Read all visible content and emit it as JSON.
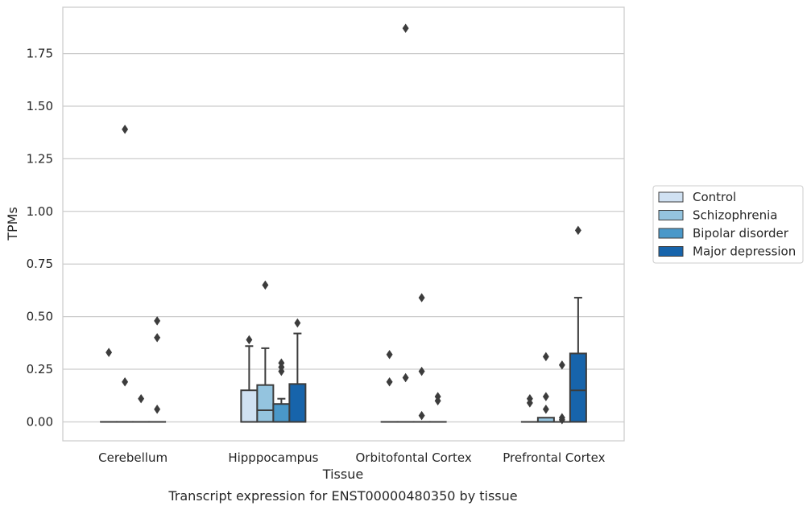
{
  "chart_data": {
    "type": "box",
    "caption": "Transcript expression for ENST00000480350 by tissue",
    "xlabel": "Tissue",
    "ylabel": "TPMs",
    "ylim": [
      -0.09,
      1.97
    ],
    "yticks": [
      0.0,
      0.25,
      0.5,
      0.75,
      1.0,
      1.25,
      1.5,
      1.75
    ],
    "ytick_labels": [
      "0.00",
      "0.25",
      "0.50",
      "0.75",
      "1.00",
      "1.25",
      "1.50",
      "1.75"
    ],
    "grid": "horizontal",
    "legend_position": "right",
    "categories": [
      "Cerebellum",
      "Hipppocampus",
      "Orbitofontal Cortex",
      "Prefrontal Cortex"
    ],
    "series": [
      {
        "name": "Control",
        "color": "#d0e1f2",
        "boxes": [
          {
            "q1": 0,
            "median": 0,
            "q3": 0,
            "whisker_low": 0,
            "whisker_high": 0,
            "outliers": [
              0.33
            ]
          },
          {
            "q1": 0,
            "median": 0,
            "q3": 0.15,
            "whisker_low": 0,
            "whisker_high": 0.36,
            "outliers": [
              0.39
            ]
          },
          {
            "q1": 0,
            "median": 0,
            "q3": 0,
            "whisker_low": 0,
            "whisker_high": 0,
            "outliers": [
              0.32,
              0.19
            ]
          },
          {
            "q1": 0,
            "median": 0,
            "q3": 0,
            "whisker_low": 0,
            "whisker_high": 0,
            "outliers": [
              0.11,
              0.09
            ]
          }
        ]
      },
      {
        "name": "Schizophrenia",
        "color": "#94c4df",
        "boxes": [
          {
            "q1": 0,
            "median": 0,
            "q3": 0,
            "whisker_low": 0,
            "whisker_high": 0,
            "outliers": [
              0.19,
              1.39
            ]
          },
          {
            "q1": 0,
            "median": 0.055,
            "q3": 0.175,
            "whisker_low": 0,
            "whisker_high": 0.35,
            "outliers": [
              0.65
            ]
          },
          {
            "q1": 0,
            "median": 0,
            "q3": 0,
            "whisker_low": 0,
            "whisker_high": 0,
            "outliers": [
              0.21,
              1.87
            ]
          },
          {
            "q1": 0,
            "median": 0,
            "q3": 0.02,
            "whisker_low": 0,
            "whisker_high": 0.02,
            "outliers": [
              0.31,
              0.12,
              0.06
            ]
          }
        ]
      },
      {
        "name": "Bipolar disorder",
        "color": "#4a98c9",
        "boxes": [
          {
            "q1": 0,
            "median": 0,
            "q3": 0,
            "whisker_low": 0,
            "whisker_high": 0,
            "outliers": [
              0.11
            ]
          },
          {
            "q1": 0,
            "median": 0,
            "q3": 0.085,
            "whisker_low": 0,
            "whisker_high": 0.11,
            "outliers": [
              0.28,
              0.26,
              0.24
            ]
          },
          {
            "q1": 0,
            "median": 0,
            "q3": 0,
            "whisker_low": 0,
            "whisker_high": 0,
            "outliers": [
              0.59,
              0.24,
              0.03
            ]
          },
          {
            "q1": 0,
            "median": 0,
            "q3": 0,
            "whisker_low": 0,
            "whisker_high": 0,
            "outliers": [
              0.27,
              0.02,
              0.01
            ]
          }
        ]
      },
      {
        "name": "Major depression",
        "color": "#1764ab",
        "boxes": [
          {
            "q1": 0,
            "median": 0,
            "q3": 0,
            "whisker_low": 0,
            "whisker_high": 0,
            "outliers": [
              0.48,
              0.4,
              0.06
            ]
          },
          {
            "q1": 0,
            "median": 0,
            "q3": 0.18,
            "whisker_low": 0,
            "whisker_high": 0.42,
            "outliers": [
              0.47
            ]
          },
          {
            "q1": 0,
            "median": 0,
            "q3": 0,
            "whisker_low": 0,
            "whisker_high": 0,
            "outliers": [
              0.12,
              0.1
            ]
          },
          {
            "q1": 0,
            "median": 0.15,
            "q3": 0.325,
            "whisker_low": 0,
            "whisker_high": 0.59,
            "outliers": [
              0.91
            ]
          }
        ]
      }
    ]
  }
}
